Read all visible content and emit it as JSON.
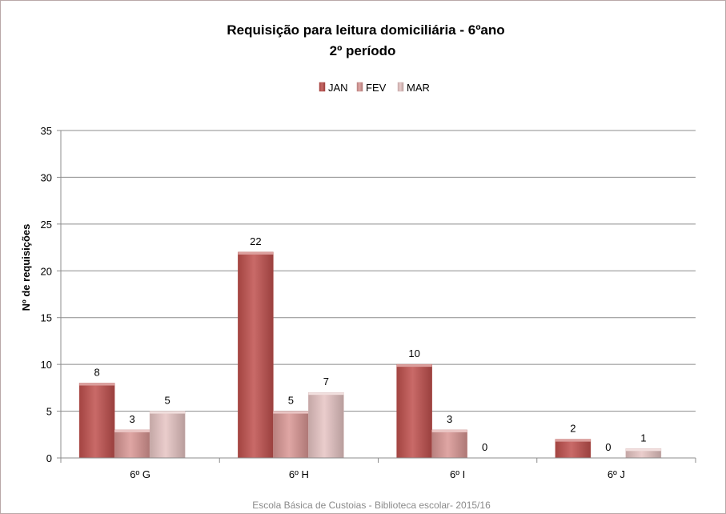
{
  "chart_data": {
    "type": "bar",
    "title_line1": "Requisição para leitura domiciliária  - 6ºano",
    "title_line2": "2º período",
    "ylabel": "Nº de requisições",
    "xlabel": "",
    "ylim": [
      0,
      35
    ],
    "yticks": [
      0,
      5,
      10,
      15,
      20,
      25,
      30,
      35
    ],
    "grid": true,
    "legend_position": "top-center",
    "categories": [
      "6º G",
      "6º H",
      "6º I",
      "6º J"
    ],
    "series": [
      {
        "name": "JAN",
        "values": [
          8,
          22,
          10,
          2
        ],
        "color": "#c0504d"
      },
      {
        "name": "FEV",
        "values": [
          3,
          5,
          3,
          0
        ],
        "color": "#d99694"
      },
      {
        "name": "MAR",
        "values": [
          5,
          7,
          0,
          1
        ],
        "color": "#e6c4c3"
      }
    ],
    "footer": "Escola Básica de Custoias - Biblioteca escolar- 2015/16"
  }
}
